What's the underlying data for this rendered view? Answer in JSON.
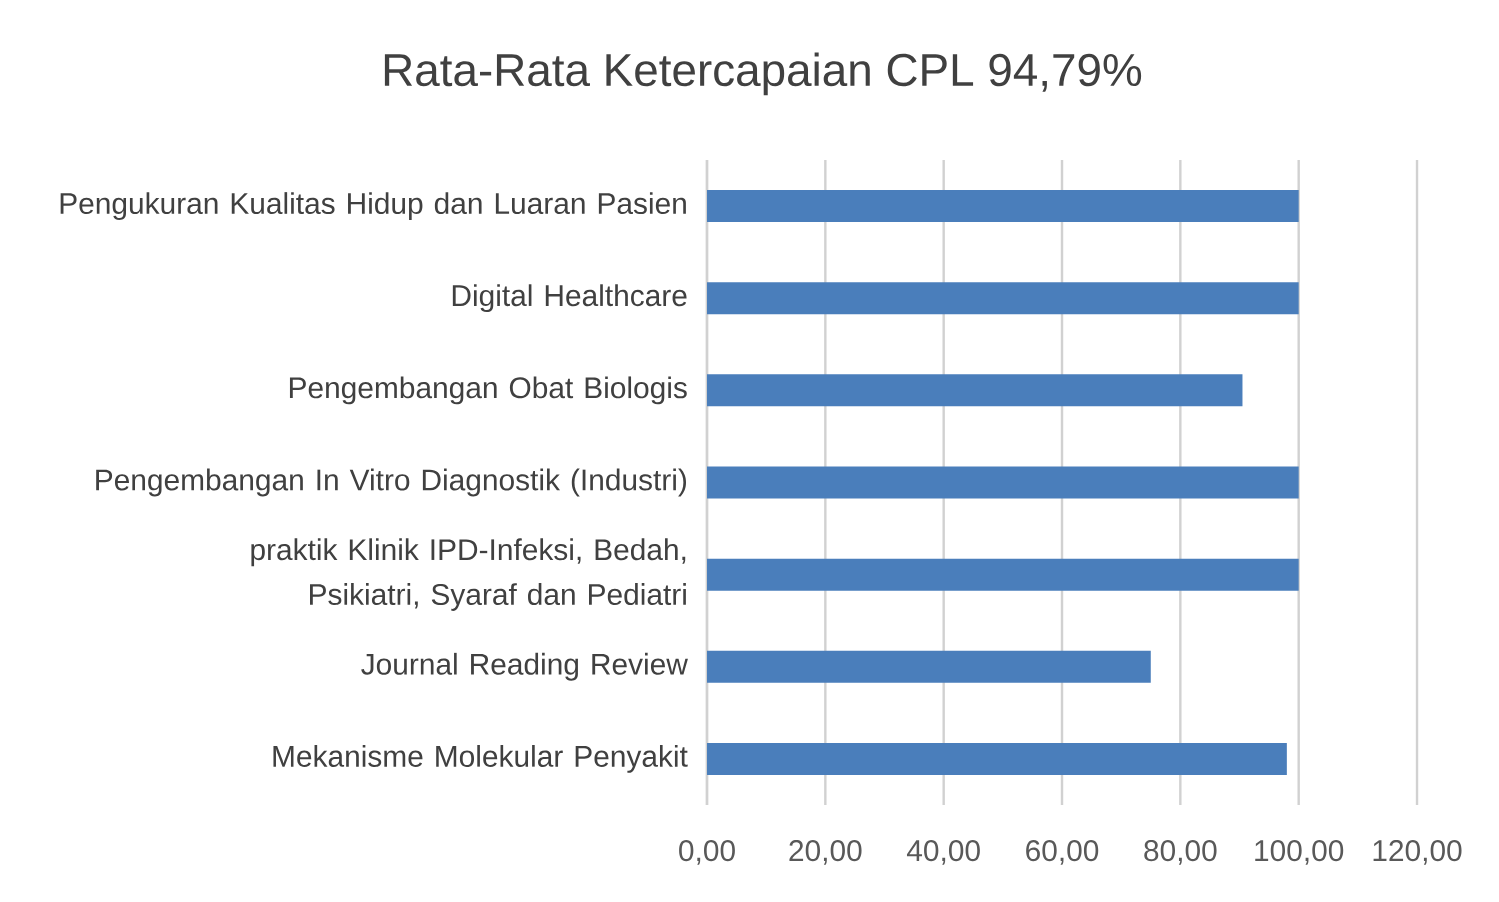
{
  "chart_data": {
    "type": "bar",
    "orientation": "horizontal",
    "title": "Rata-Rata Ketercapaian CPL 94,79%",
    "categories": [
      "Pengukuran Kualitas Hidup dan Luaran Pasien",
      "Digital Healthcare",
      "Pengembangan Obat Biologis",
      "Pengembangan In Vitro Diagnostik (Industri)",
      "praktik Klinik IPD-Infeksi, Bedah, Psikiatri, Syaraf dan Pediatri",
      "Journal Reading Review",
      "Mekanisme Molekular Penyakit"
    ],
    "values": [
      100,
      100,
      90.5,
      100,
      100,
      75,
      98
    ],
    "color": "#4a7ebb",
    "xlim": [
      0,
      120
    ],
    "xticks": [
      {
        "value": 0,
        "label": "0,00"
      },
      {
        "value": 20,
        "label": "20,00"
      },
      {
        "value": 40,
        "label": "40,00"
      },
      {
        "value": 60,
        "label": "60,00"
      },
      {
        "value": 80,
        "label": "80,00"
      },
      {
        "value": 100,
        "label": "100,00"
      },
      {
        "value": 120,
        "label": "120,00"
      }
    ],
    "grid": "x"
  }
}
